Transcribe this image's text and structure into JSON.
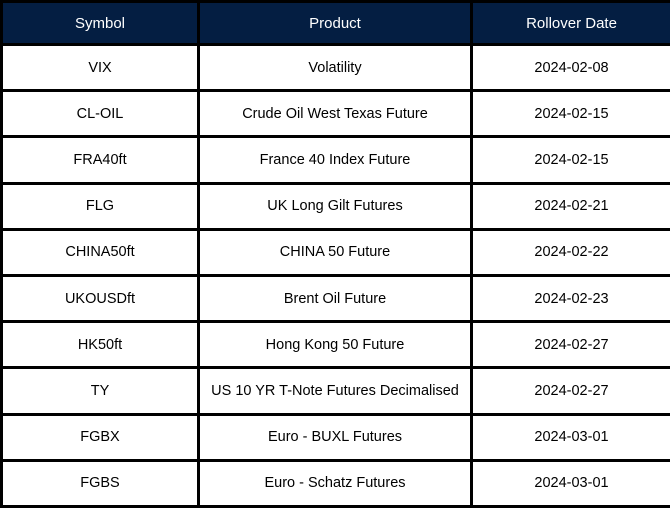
{
  "table": {
    "columns": [
      {
        "key": "symbol",
        "label": "Symbol"
      },
      {
        "key": "product",
        "label": "Product"
      },
      {
        "key": "date",
        "label": "Rollover Date"
      }
    ],
    "rows": [
      {
        "symbol": "VIX",
        "product": "Volatility",
        "date": "2024-02-08"
      },
      {
        "symbol": "CL-OIL",
        "product": "Crude Oil West Texas Future",
        "date": "2024-02-15"
      },
      {
        "symbol": "FRA40ft",
        "product": "France 40 Index Future",
        "date": "2024-02-15"
      },
      {
        "symbol": "FLG",
        "product": "UK Long Gilt Futures",
        "date": "2024-02-21"
      },
      {
        "symbol": "CHINA50ft",
        "product": "CHINA 50 Future",
        "date": "2024-02-22"
      },
      {
        "symbol": "UKOUSDft",
        "product": "Brent Oil Future",
        "date": "2024-02-23"
      },
      {
        "symbol": "HK50ft",
        "product": "Hong Kong 50 Future",
        "date": "2024-02-27"
      },
      {
        "symbol": "TY",
        "product": "US 10 YR T-Note Futures Decimalised",
        "date": "2024-02-27"
      },
      {
        "symbol": "FGBX",
        "product": "Euro - BUXL Futures",
        "date": "2024-03-01"
      },
      {
        "symbol": "FGBS",
        "product": "Euro - Schatz Futures",
        "date": "2024-03-01"
      }
    ]
  },
  "colors": {
    "header_bg": "#041E42",
    "header_text": "#ffffff",
    "grid_border": "#000000",
    "row_bg": "#ffffff",
    "row_text": "#000000"
  }
}
